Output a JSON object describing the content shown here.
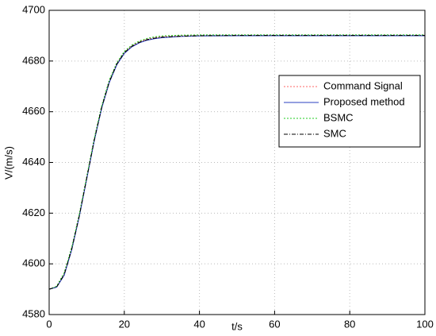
{
  "chart_data": {
    "type": "line",
    "xlabel": "t/s",
    "ylabel": "V/(m/s)",
    "x": [
      0,
      2,
      4,
      6,
      8,
      10,
      12,
      14,
      16,
      18,
      20,
      22,
      24,
      26,
      28,
      30,
      35,
      40,
      50,
      60,
      70,
      80,
      90,
      100
    ],
    "series": [
      {
        "name": "Command Signal",
        "color": "#ff6666",
        "linestyle": ":",
        "values": [
          4590,
          4591,
          4596,
          4606,
          4619,
          4634,
          4649,
          4662,
          4672,
          4679,
          4683.5,
          4686,
          4687.6,
          4688.6,
          4689.2,
          4689.6,
          4690,
          4690.2,
          4690.2,
          4690.2,
          4690.2,
          4690.2,
          4690.2,
          4690.2
        ]
      },
      {
        "name": "Proposed method",
        "color": "#2a3fc0",
        "linestyle": "-",
        "values": [
          4590,
          4590.8,
          4595.5,
          4605.5,
          4618.5,
          4633.5,
          4648.5,
          4661.5,
          4671.5,
          4678.5,
          4683,
          4685.6,
          4687.2,
          4688.2,
          4688.8,
          4689.2,
          4689.7,
          4689.9,
          4690,
          4690,
          4690,
          4690,
          4690,
          4690
        ]
      },
      {
        "name": "BSMC",
        "color": "#22cc22",
        "linestyle": ":",
        "values": [
          4590,
          4591.2,
          4596.5,
          4606.5,
          4619.5,
          4634.5,
          4649.5,
          4662.5,
          4672.5,
          4679.3,
          4683.8,
          4686.3,
          4687.9,
          4688.9,
          4689.5,
          4689.9,
          4690.2,
          4690.3,
          4690.3,
          4690.3,
          4690.3,
          4690.3,
          4690.3,
          4690.3
        ]
      },
      {
        "name": "SMC",
        "color": "#000000",
        "linestyle": "-.",
        "values": [
          4590,
          4590.9,
          4595.8,
          4605.8,
          4618.8,
          4633.8,
          4648.8,
          4661.8,
          4671.8,
          4678.8,
          4683.3,
          4685.8,
          4687.4,
          4688.4,
          4689,
          4689.4,
          4689.8,
          4690,
          4690.1,
          4690.1,
          4690.1,
          4690.1,
          4690.1,
          4690.1
        ]
      }
    ],
    "xlim": [
      0,
      100
    ],
    "xticks": [
      0,
      20,
      40,
      60,
      80,
      100
    ],
    "ylim": [
      4580,
      4700
    ],
    "yticks": [
      4580,
      4600,
      4620,
      4640,
      4660,
      4680,
      4700
    ],
    "grid": true,
    "legend": "upper right"
  }
}
